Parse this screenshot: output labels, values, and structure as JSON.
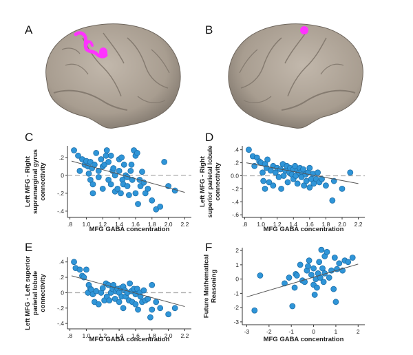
{
  "figure": {
    "panel_letters": [
      "A",
      "B",
      "C",
      "D",
      "E",
      "F"
    ],
    "brain_highlight_color": "#ff33ff",
    "brain_color": "#b3a99d",
    "dot_color": "#2f95d8",
    "dot_edge_color": "#1f6fa8"
  },
  "chart_data": [
    {
      "panel": "C",
      "type": "scatter",
      "xlabel": "MFG GABA concentration",
      "ylabel_lines": [
        "Left MFG - Right",
        "supramarginal gyrus",
        "connectivity"
      ],
      "xticks": [
        ".8",
        "1.0",
        "1.2",
        "1.4",
        "1.6",
        "1.8",
        "2.0",
        "2.2"
      ],
      "xtick_values": [
        0.8,
        1.0,
        1.2,
        1.4,
        1.6,
        1.8,
        2.0,
        2.2
      ],
      "yticks": [
        ".2",
        "0",
        "-.2",
        "-.4"
      ],
      "ytick_values": [
        0.2,
        0,
        -0.2,
        -0.4
      ],
      "xlim": [
        0.77,
        2.28
      ],
      "ylim": [
        -0.47,
        0.33
      ],
      "fit_line": [
        [
          0.82,
          0.16
        ],
        [
          2.2,
          -0.19
        ]
      ],
      "zero_line": true,
      "points": [
        [
          0.85,
          0.28
        ],
        [
          0.9,
          0.22
        ],
        [
          0.92,
          0.05
        ],
        [
          0.95,
          0.18
        ],
        [
          0.98,
          0.12
        ],
        [
          1.0,
          0.16
        ],
        [
          1.02,
          0.1
        ],
        [
          1.03,
          0.02
        ],
        [
          1.05,
          0.15
        ],
        [
          1.05,
          -0.05
        ],
        [
          1.07,
          0.08
        ],
        [
          1.08,
          -0.1
        ],
        [
          1.08,
          -0.2
        ],
        [
          1.1,
          0.12
        ],
        [
          1.12,
          0.25
        ],
        [
          1.15,
          0.05
        ],
        [
          1.15,
          -0.02
        ],
        [
          1.18,
          0.18
        ],
        [
          1.2,
          0.1
        ],
        [
          1.2,
          -0.15
        ],
        [
          1.22,
          0.12
        ],
        [
          1.24,
          0.22
        ],
        [
          1.25,
          0.28
        ],
        [
          1.27,
          0.15
        ],
        [
          1.27,
          -0.05
        ],
        [
          1.3,
          -0.1
        ],
        [
          1.3,
          0.22
        ],
        [
          1.32,
          0.05
        ],
        [
          1.33,
          0.08
        ],
        [
          1.35,
          0.0
        ],
        [
          1.35,
          -0.18
        ],
        [
          1.38,
          -0.15
        ],
        [
          1.4,
          0.05
        ],
        [
          1.4,
          0.18
        ],
        [
          1.42,
          -0.2
        ],
        [
          1.43,
          0.2
        ],
        [
          1.44,
          -0.05
        ],
        [
          1.45,
          -0.1
        ],
        [
          1.46,
          0.12
        ],
        [
          1.48,
          0.0
        ],
        [
          1.5,
          -0.02
        ],
        [
          1.5,
          -0.12
        ],
        [
          1.52,
          -0.22
        ],
        [
          1.54,
          0.05
        ],
        [
          1.55,
          0.12
        ],
        [
          1.56,
          -0.05
        ],
        [
          1.58,
          0.28
        ],
        [
          1.6,
          -0.2
        ],
        [
          1.6,
          0.22
        ],
        [
          1.62,
          0.25
        ],
        [
          1.63,
          -0.32
        ],
        [
          1.65,
          -0.05
        ],
        [
          1.66,
          -0.12
        ],
        [
          1.68,
          0.04
        ],
        [
          1.7,
          -0.08
        ],
        [
          1.72,
          -0.2
        ],
        [
          1.75,
          -0.15
        ],
        [
          1.8,
          -0.28
        ],
        [
          1.85,
          -0.38
        ],
        [
          1.9,
          -0.35
        ],
        [
          1.95,
          0.15
        ],
        [
          2.0,
          -0.12
        ],
        [
          2.08,
          -0.17
        ]
      ]
    },
    {
      "panel": "D",
      "type": "scatter",
      "xlabel": "MFG GABA concentration",
      "ylabel_lines": [
        "Left MFG - Right",
        "superior parietal lobule",
        "connectivity"
      ],
      "xticks": [
        ".8",
        "1.0",
        "1.2",
        "1.4",
        "1.6",
        "1.8",
        "2.0",
        "2.2"
      ],
      "xtick_values": [
        0.8,
        1.0,
        1.2,
        1.4,
        1.6,
        1.8,
        2.0,
        2.2
      ],
      "yticks": [
        ".4",
        ".2",
        "0.0",
        "-.2",
        "-.4",
        "-.6"
      ],
      "ytick_values": [
        0.4,
        0.2,
        0.0,
        -0.2,
        -0.4,
        -0.6
      ],
      "xlim": [
        0.77,
        2.28
      ],
      "ylim": [
        -0.64,
        0.46
      ],
      "fit_line": [
        [
          0.82,
          0.2
        ],
        [
          2.2,
          -0.12
        ]
      ],
      "zero_line": true,
      "points": [
        [
          0.85,
          0.4
        ],
        [
          0.9,
          0.3
        ],
        [
          0.92,
          0.15
        ],
        [
          0.95,
          0.28
        ],
        [
          0.98,
          0.22
        ],
        [
          1.0,
          0.2
        ],
        [
          1.02,
          0.05
        ],
        [
          1.03,
          -0.08
        ],
        [
          1.05,
          0.18
        ],
        [
          1.05,
          -0.2
        ],
        [
          1.07,
          0.12
        ],
        [
          1.08,
          0.25
        ],
        [
          1.1,
          -0.1
        ],
        [
          1.12,
          0.08
        ],
        [
          1.15,
          0.15
        ],
        [
          1.15,
          -0.15
        ],
        [
          1.18,
          0.05
        ],
        [
          1.2,
          0.12
        ],
        [
          1.22,
          -0.02
        ],
        [
          1.24,
          0.1
        ],
        [
          1.25,
          -0.2
        ],
        [
          1.27,
          0.18
        ],
        [
          1.28,
          0.0
        ],
        [
          1.3,
          0.08
        ],
        [
          1.32,
          0.15
        ],
        [
          1.33,
          -0.1
        ],
        [
          1.35,
          0.05
        ],
        [
          1.36,
          0.12
        ],
        [
          1.38,
          0.02
        ],
        [
          1.4,
          0.1
        ],
        [
          1.4,
          -0.05
        ],
        [
          1.42,
          0.15
        ],
        [
          1.43,
          0.0
        ],
        [
          1.45,
          0.08
        ],
        [
          1.45,
          -0.12
        ],
        [
          1.47,
          0.05
        ],
        [
          1.48,
          0.12
        ],
        [
          1.5,
          -0.02
        ],
        [
          1.5,
          0.06
        ],
        [
          1.52,
          0.1
        ],
        [
          1.53,
          -0.15
        ],
        [
          1.55,
          0.02
        ],
        [
          1.56,
          -0.08
        ],
        [
          1.58,
          0.05
        ],
        [
          1.6,
          0.12
        ],
        [
          1.6,
          -0.18
        ],
        [
          1.62,
          -0.05
        ],
        [
          1.64,
          0.03
        ],
        [
          1.65,
          -0.12
        ],
        [
          1.68,
          -0.05
        ],
        [
          1.7,
          0.05
        ],
        [
          1.72,
          -0.1
        ],
        [
          1.75,
          -0.05
        ],
        [
          1.8,
          -0.15
        ],
        [
          1.88,
          -0.38
        ],
        [
          1.9,
          -0.08
        ],
        [
          2.0,
          -0.2
        ],
        [
          2.1,
          0.05
        ]
      ]
    },
    {
      "panel": "E",
      "type": "scatter",
      "xlabel": "MFG GABA concentration",
      "ylabel_lines": [
        "Left MFG - Left superior",
        "parietal lobule",
        "connectivity"
      ],
      "xticks": [
        ".8",
        "1.0",
        "1.2",
        "1.4",
        "1.6",
        "1.8",
        "2.0",
        "2.2"
      ],
      "xtick_values": [
        0.8,
        1.0,
        1.2,
        1.4,
        1.6,
        1.8,
        2.0,
        2.2
      ],
      "yticks": [
        ".4",
        ".2",
        "0",
        "-.2",
        "-.4"
      ],
      "ytick_values": [
        0.4,
        0.2,
        0,
        -0.2,
        -0.4
      ],
      "xlim": [
        0.77,
        2.28
      ],
      "ylim": [
        -0.47,
        0.46
      ],
      "fit_line": [
        [
          0.82,
          0.22
        ],
        [
          2.2,
          -0.18
        ]
      ],
      "zero_line": true,
      "points": [
        [
          0.85,
          0.4
        ],
        [
          0.87,
          0.32
        ],
        [
          0.92,
          0.3
        ],
        [
          0.95,
          0.22
        ],
        [
          0.97,
          0.2
        ],
        [
          1.0,
          0.3
        ],
        [
          1.02,
          0.0
        ],
        [
          1.03,
          0.1
        ],
        [
          1.05,
          0.05
        ],
        [
          1.06,
          0.04
        ],
        [
          1.08,
          -0.02
        ],
        [
          1.1,
          -0.12
        ],
        [
          1.12,
          0.02
        ],
        [
          1.15,
          -0.15
        ],
        [
          1.18,
          0.0
        ],
        [
          1.2,
          0.06
        ],
        [
          1.22,
          -0.1
        ],
        [
          1.24,
          0.12
        ],
        [
          1.25,
          -0.05
        ],
        [
          1.27,
          0.1
        ],
        [
          1.28,
          -0.1
        ],
        [
          1.3,
          0.0
        ],
        [
          1.32,
          0.05
        ],
        [
          1.33,
          0.1
        ],
        [
          1.35,
          -0.08
        ],
        [
          1.36,
          0.02
        ],
        [
          1.38,
          0.05
        ],
        [
          1.4,
          -0.12
        ],
        [
          1.4,
          0.0
        ],
        [
          1.42,
          0.06
        ],
        [
          1.43,
          -0.05
        ],
        [
          1.45,
          0.08
        ],
        [
          1.45,
          -0.2
        ],
        [
          1.47,
          0.03
        ],
        [
          1.48,
          -0.05
        ],
        [
          1.5,
          0.0
        ],
        [
          1.52,
          -0.1
        ],
        [
          1.53,
          0.12
        ],
        [
          1.55,
          0.02
        ],
        [
          1.56,
          -0.12
        ],
        [
          1.58,
          0.05
        ],
        [
          1.6,
          -0.02
        ],
        [
          1.6,
          -0.15
        ],
        [
          1.62,
          0.05
        ],
        [
          1.63,
          -0.22
        ],
        [
          1.65,
          0.0
        ],
        [
          1.66,
          -0.05
        ],
        [
          1.68,
          -0.12
        ],
        [
          1.7,
          0.03
        ],
        [
          1.72,
          -0.1
        ],
        [
          1.75,
          -0.08
        ],
        [
          1.78,
          -0.32
        ],
        [
          1.8,
          0.1
        ],
        [
          1.8,
          -0.22
        ],
        [
          1.85,
          -0.12
        ],
        [
          1.9,
          -0.2
        ],
        [
          2.0,
          -0.28
        ],
        [
          2.08,
          -0.2
        ]
      ]
    },
    {
      "panel": "F",
      "type": "scatter",
      "xlabel": "MFG GABA concentration",
      "ylabel_lines": [
        "Future Mathematical",
        "Reasoning"
      ],
      "xticks": [
        "-3",
        "-2",
        "-1",
        "0",
        "1",
        "2"
      ],
      "xtick_values": [
        -3,
        -2,
        -1,
        0,
        1,
        2
      ],
      "yticks": [
        "2",
        "1",
        "0",
        "-1",
        "-2",
        "-3"
      ],
      "ytick_values": [
        2,
        1,
        0,
        -1,
        -2,
        -3
      ],
      "xlim": [
        -3.2,
        2.3
      ],
      "ylim": [
        -3.2,
        2.2
      ],
      "fit_line": [
        [
          -3.0,
          -1.25
        ],
        [
          2.0,
          1.05
        ]
      ],
      "zero_line": false,
      "points": [
        [
          -2.65,
          -2.2
        ],
        [
          -2.4,
          0.25
        ],
        [
          -1.3,
          -0.3
        ],
        [
          -1.1,
          0.1
        ],
        [
          -0.95,
          -1.9
        ],
        [
          -0.85,
          -0.6
        ],
        [
          -0.8,
          0.35
        ],
        [
          -0.75,
          0.25
        ],
        [
          -0.6,
          1.0
        ],
        [
          -0.5,
          -0.1
        ],
        [
          -0.4,
          -0.2
        ],
        [
          -0.3,
          0.6
        ],
        [
          -0.25,
          0.9
        ],
        [
          -0.2,
          1.3
        ],
        [
          -0.1,
          0.3
        ],
        [
          0.0,
          -0.4
        ],
        [
          0.0,
          0.75
        ],
        [
          0.05,
          -1.1
        ],
        [
          0.1,
          0.0
        ],
        [
          0.15,
          -0.6
        ],
        [
          0.2,
          0.4
        ],
        [
          0.25,
          1.2
        ],
        [
          0.3,
          0.1
        ],
        [
          0.35,
          2.05
        ],
        [
          0.4,
          0.75
        ],
        [
          0.45,
          -0.2
        ],
        [
          0.5,
          1.6
        ],
        [
          0.5,
          0.4
        ],
        [
          0.6,
          1.9
        ],
        [
          0.7,
          0.1
        ],
        [
          0.8,
          0.6
        ],
        [
          0.9,
          -0.7
        ],
        [
          0.95,
          1.5
        ],
        [
          1.0,
          -1.6
        ],
        [
          1.05,
          0.7
        ],
        [
          1.15,
          1.1
        ],
        [
          1.3,
          0.6
        ],
        [
          1.4,
          1.3
        ],
        [
          1.55,
          1.2
        ],
        [
          1.75,
          1.5
        ]
      ]
    }
  ]
}
